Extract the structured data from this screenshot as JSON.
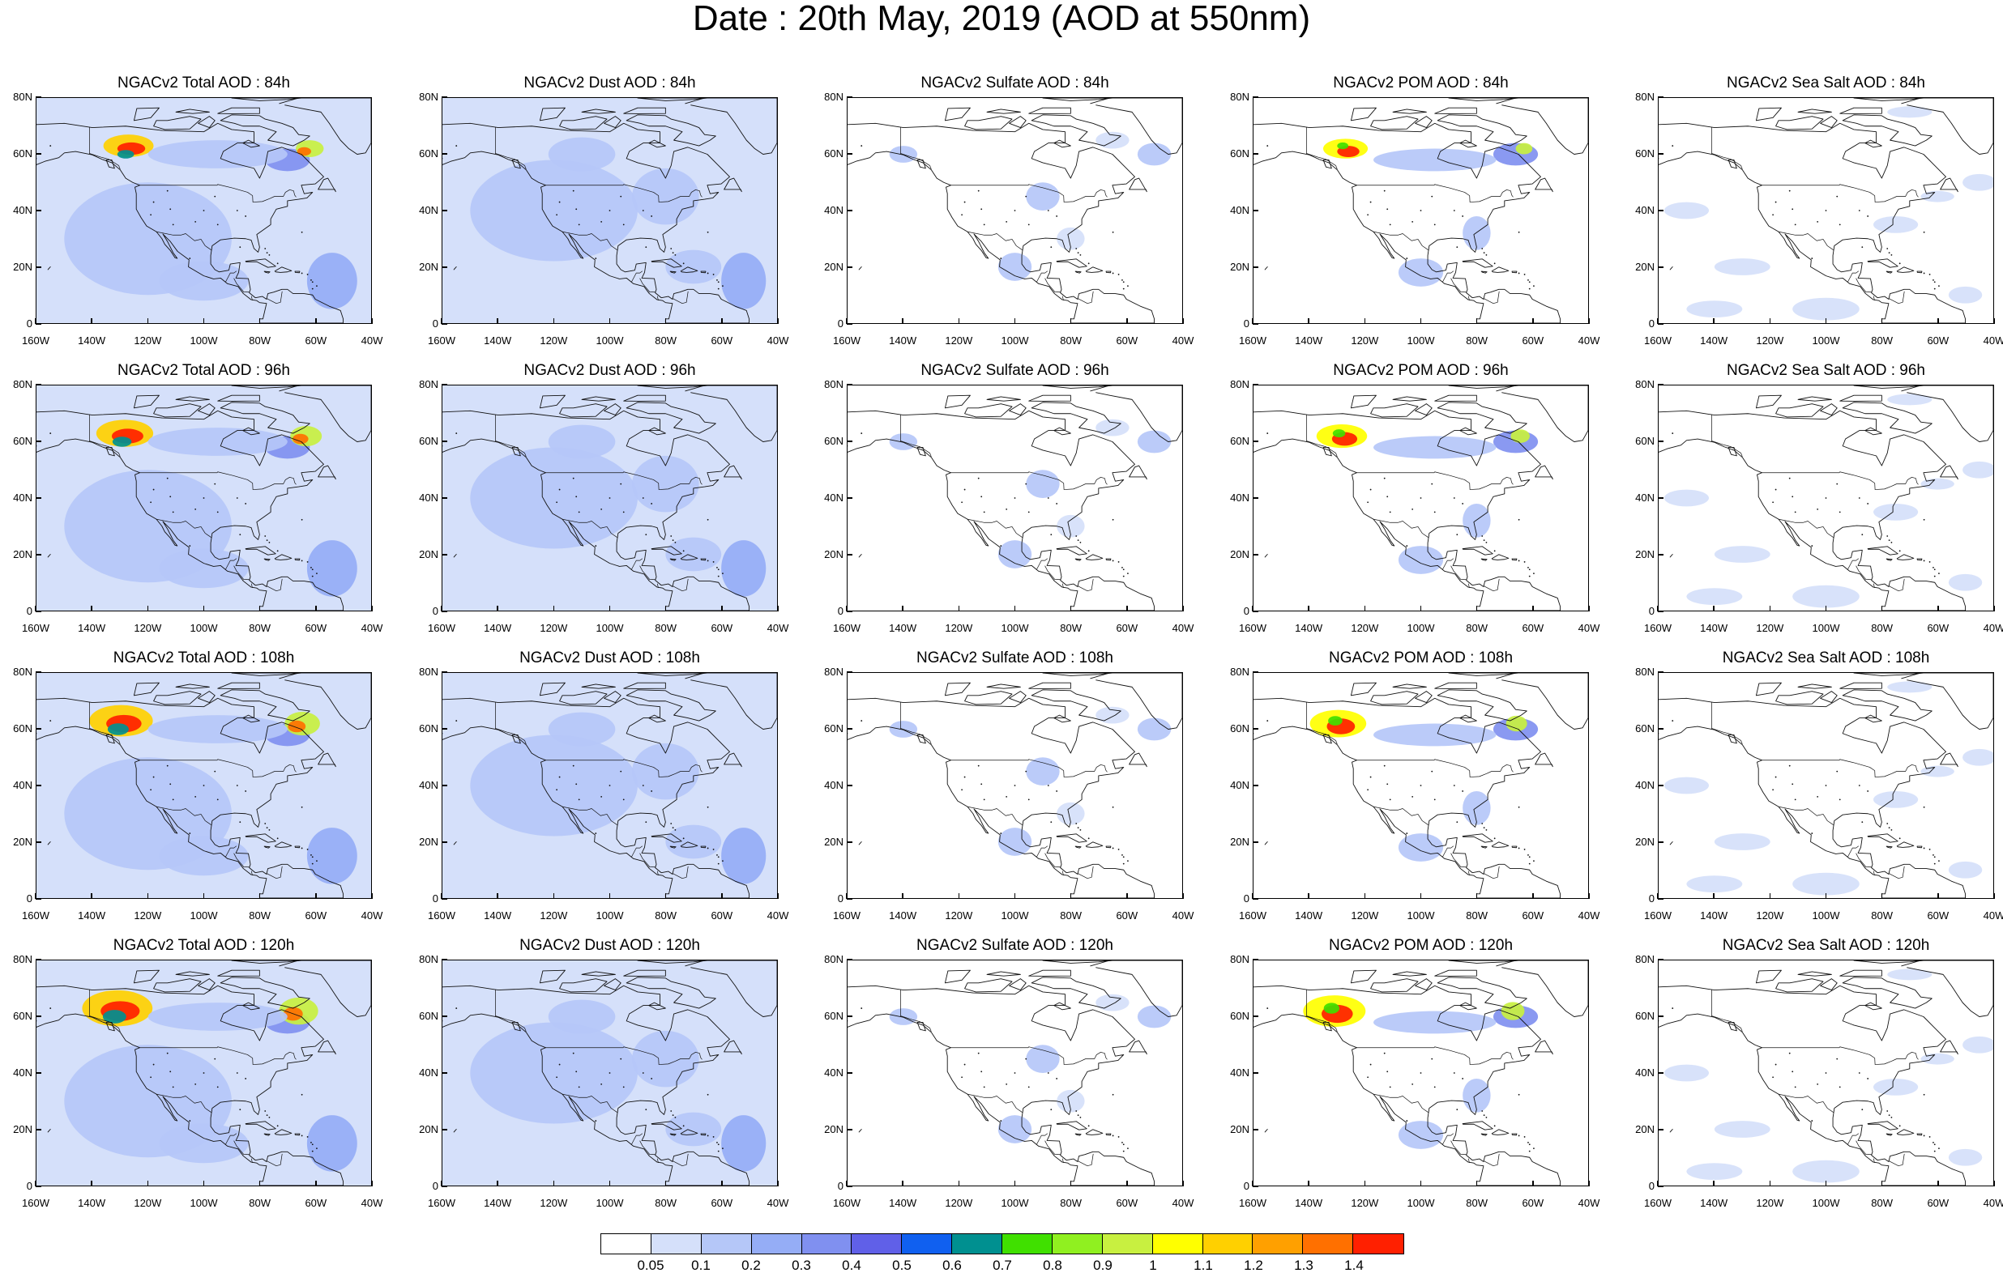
{
  "title": "Date : 20th May, 2019 (AOD at 550nm)",
  "lat_labels": [
    "80N",
    "60N",
    "40N",
    "20N",
    "0"
  ],
  "lon_labels": [
    "160W",
    "140W",
    "120W",
    "100W",
    "80W",
    "60W",
    "40W"
  ],
  "extent": {
    "lon_min": -160,
    "lon_max": -40,
    "lat_min": 0,
    "lat_max": 80
  },
  "colorbar": {
    "colors": [
      "#ffffff",
      "#d5e0fa",
      "#b5c7f8",
      "#95adf6",
      "#8090f0",
      "#6060e8",
      "#1060f0",
      "#009090",
      "#40e000",
      "#90f020",
      "#c8f040",
      "#ffff00",
      "#ffd000",
      "#ffa000",
      "#ff7000",
      "#ff2000"
    ],
    "labels": [
      "0.05",
      "0.1",
      "0.2",
      "0.3",
      "0.4",
      "0.5",
      "0.6",
      "0.7",
      "0.8",
      "0.9",
      "1",
      "1.1",
      "1.2",
      "1.3",
      "1.4"
    ]
  },
  "panels": [
    {
      "title": "NGACv2 Total AOD : 84h",
      "kind": "total",
      "hour": 84
    },
    {
      "title": "NGACv2 Dust AOD : 84h",
      "kind": "dust",
      "hour": 84
    },
    {
      "title": "NGACv2 Sulfate AOD : 84h",
      "kind": "sulfate",
      "hour": 84
    },
    {
      "title": "NGACv2 POM AOD : 84h",
      "kind": "pom",
      "hour": 84
    },
    {
      "title": "NGACv2 Sea Salt AOD : 84h",
      "kind": "seasalt",
      "hour": 84
    },
    {
      "title": "NGACv2 Total AOD : 96h",
      "kind": "total",
      "hour": 96
    },
    {
      "title": "NGACv2 Dust AOD : 96h",
      "kind": "dust",
      "hour": 96
    },
    {
      "title": "NGACv2 Sulfate AOD : 96h",
      "kind": "sulfate",
      "hour": 96
    },
    {
      "title": "NGACv2 POM AOD : 96h",
      "kind": "pom",
      "hour": 96
    },
    {
      "title": "NGACv2 Sea Salt AOD : 96h",
      "kind": "seasalt",
      "hour": 96
    },
    {
      "title": "NGACv2 Total AOD : 108h",
      "kind": "total",
      "hour": 108
    },
    {
      "title": "NGACv2 Dust AOD : 108h",
      "kind": "dust",
      "hour": 108
    },
    {
      "title": "NGACv2 Sulfate AOD : 108h",
      "kind": "sulfate",
      "hour": 108
    },
    {
      "title": "NGACv2 POM AOD : 108h",
      "kind": "pom",
      "hour": 108
    },
    {
      "title": "NGACv2 Sea Salt AOD : 108h",
      "kind": "seasalt",
      "hour": 108
    },
    {
      "title": "NGACv2 Total AOD : 120h",
      "kind": "total",
      "hour": 120
    },
    {
      "title": "NGACv2 Dust AOD : 120h",
      "kind": "dust",
      "hour": 120
    },
    {
      "title": "NGACv2 Sulfate AOD : 120h",
      "kind": "sulfate",
      "hour": 120
    },
    {
      "title": "NGACv2 POM AOD : 120h",
      "kind": "pom",
      "hour": 120
    },
    {
      "title": "NGACv2 Sea Salt  AOD : 120h",
      "kind": "seasalt",
      "hour": 120
    }
  ]
}
